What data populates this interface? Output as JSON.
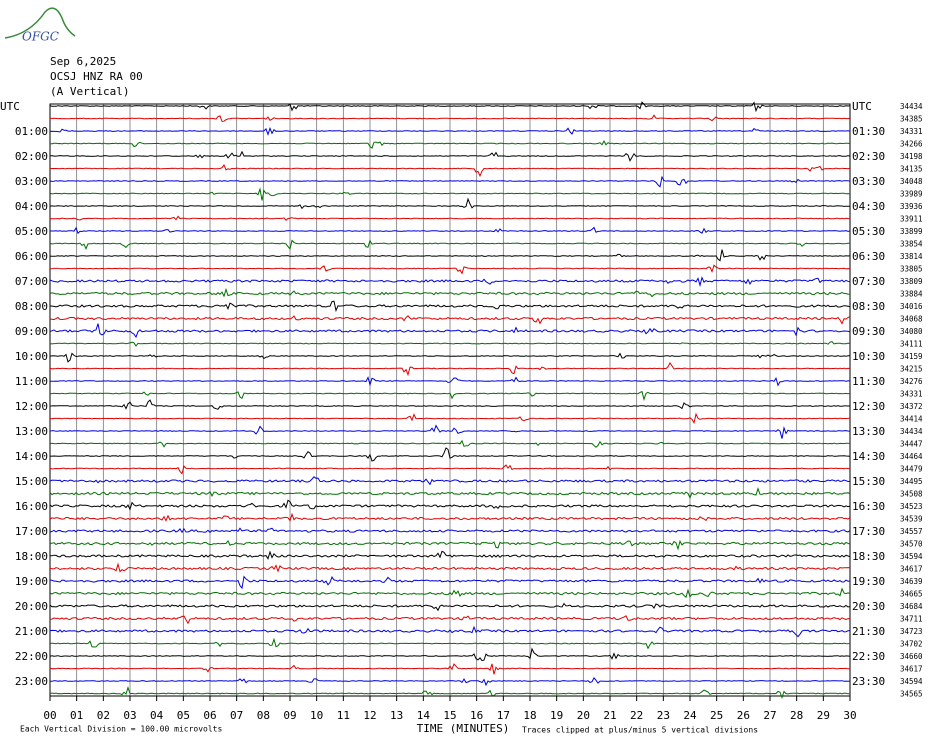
{
  "logo": "OFGC",
  "header": {
    "date": "Sep 6,2025",
    "station": "OCSJ HNZ RA 00",
    "component": "(A Vertical)"
  },
  "left_labels": [
    "UTC",
    "01:00",
    "02:00",
    "03:00",
    "04:00",
    "05:00",
    "06:00",
    "07:00",
    "08:00",
    "09:00",
    "10:00",
    "11:00",
    "12:00",
    "13:00",
    "14:00",
    "15:00",
    "16:00",
    "17:00",
    "18:00",
    "19:00",
    "20:00",
    "21:00",
    "22:00",
    "23:00"
  ],
  "right_labels": [
    "UTC",
    "01:30",
    "02:30",
    "03:30",
    "04:30",
    "05:30",
    "06:30",
    "07:30",
    "08:30",
    "09:30",
    "10:30",
    "11:30",
    "12:30",
    "13:30",
    "14:30",
    "15:30",
    "16:30",
    "17:30",
    "18:30",
    "19:30",
    "20:30",
    "21:30",
    "22:30",
    "23:30"
  ],
  "trace_counts": [
    34434,
    34385,
    34331,
    34266,
    34198,
    34135,
    34048,
    33989,
    33936,
    33911,
    33899,
    33854,
    33814,
    33805,
    33809,
    33884,
    34016,
    34068,
    34080,
    34111,
    34159,
    34215,
    34276,
    34331,
    34372,
    34414,
    34434,
    34447,
    34464,
    34479,
    34495,
    34508,
    34523,
    34539,
    34557,
    34570,
    34594,
    34617,
    34639,
    34665,
    34684,
    34711,
    34723,
    34702,
    34660,
    34617,
    34594,
    34565
  ],
  "x_ticks": [
    "00",
    "01",
    "02",
    "03",
    "04",
    "05",
    "06",
    "07",
    "08",
    "09",
    "10",
    "11",
    "12",
    "13",
    "14",
    "15",
    "16",
    "17",
    "18",
    "19",
    "20",
    "21",
    "22",
    "23",
    "24",
    "25",
    "26",
    "27",
    "28",
    "29",
    "30"
  ],
  "footer": {
    "scale": "Each Vertical Division =  100.00 microvolts",
    "axis_title": "TIME (MINUTES)",
    "clip_note": "Traces clipped at plus/minus 5 vertical divisions"
  }
}
